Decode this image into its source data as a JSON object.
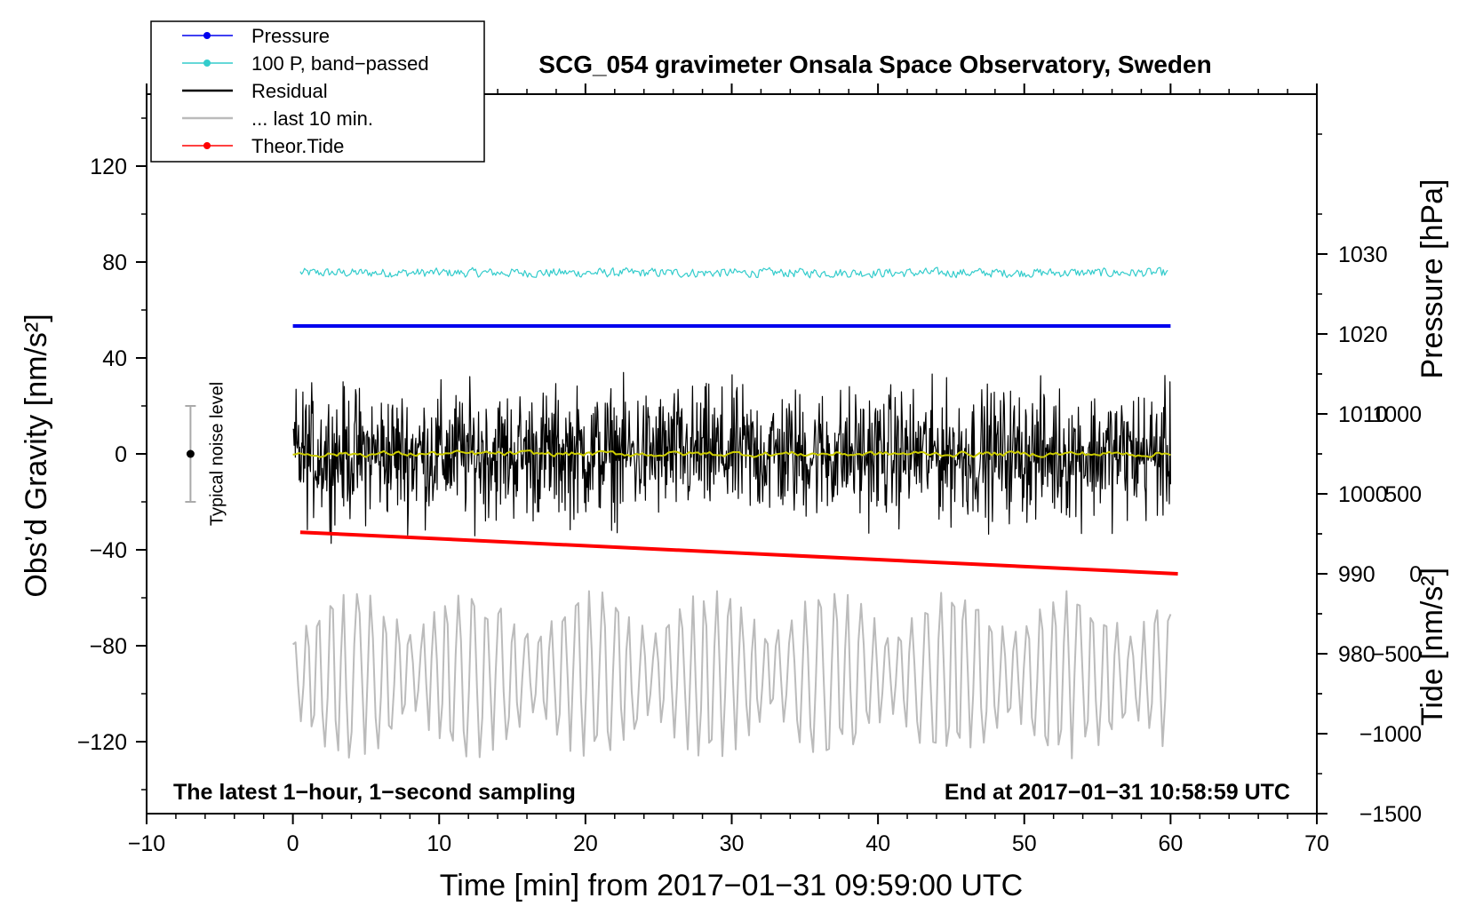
{
  "chart_data": {
    "type": "line",
    "title": "SCG_054 gravimeter Onsala Space Observatory, Sweden",
    "xlabel": "Time [min] from 2017−01−31 09:59:00 UTC",
    "ylabel_left": "Obs’d Gravity [nm/s²]",
    "ylabel_right_top": "Pressure [hPa]",
    "ylabel_right_bottom": "Tide [nm/s²]",
    "xlim": [
      -10,
      70
    ],
    "ylim_left": [
      -150,
      150
    ],
    "ylim_pressure": [
      960,
      1050
    ],
    "ylim_tide": [
      -1500,
      3000
    ],
    "x_ticks": [
      -10,
      0,
      10,
      20,
      30,
      40,
      50,
      60,
      70
    ],
    "x_tick_labels": [
      "−10",
      "0",
      "10",
      "20",
      "30",
      "40",
      "50",
      "60",
      "70"
    ],
    "y_left_ticks": [
      -120,
      -80,
      -40,
      0,
      40,
      80,
      120
    ],
    "y_left_tick_labels": [
      "−120",
      "−80",
      "−40",
      "0",
      "40",
      "80",
      "120"
    ],
    "y_pressure_ticks": [
      980,
      990,
      1000,
      1010,
      1020,
      1030
    ],
    "y_pressure_tick_labels": [
      "980",
      "990",
      "1000",
      "1010",
      "1020",
      "1030"
    ],
    "y_tide_ticks": [
      -1500,
      -1000,
      -500,
      0,
      500,
      1000
    ],
    "y_tide_tick_labels": [
      "−1500",
      "−1000",
      "−500",
      "0",
      "500",
      "1000"
    ],
    "grid": false,
    "legend_position": "top-left",
    "legend": [
      {
        "label": "Pressure",
        "color": "#0000ee",
        "marker": true
      },
      {
        "label": "100 P, band−passed",
        "color": "#33cccc",
        "marker": true
      },
      {
        "label": "Residual",
        "color": "#000000",
        "marker": false
      },
      {
        "label": "... last 10 min.",
        "color": "#bbbbbb",
        "marker": false
      },
      {
        "label": "Theor.Tide",
        "color": "#ff0000",
        "marker": true
      }
    ],
    "series": [
      {
        "name": "Pressure",
        "axis": "pressure",
        "color": "#0000ee",
        "x": [
          0,
          60
        ],
        "values": [
          1021,
          1021
        ]
      },
      {
        "name": "100 P, band-passed",
        "axis": "left",
        "color": "#33cccc",
        "x_range": [
          0.5,
          59.8
        ],
        "center": 75.5,
        "amplitude": 2.5
      },
      {
        "name": "Residual",
        "axis": "left",
        "color": "#000000",
        "x_range": [
          0,
          60
        ],
        "center": 0,
        "amplitude": 35
      },
      {
        "name": "Residual (smoothed)",
        "axis": "left",
        "color": "#cccc00",
        "x_range": [
          0,
          60
        ],
        "center": 0,
        "amplitude": 1.5
      },
      {
        "name": "... last 10 min.",
        "axis": "left",
        "color": "#bbbbbb",
        "x_range": [
          0,
          60
        ],
        "center": -92,
        "amplitude": 35
      },
      {
        "name": "Theor.Tide",
        "axis": "tide",
        "color": "#ff0000",
        "x": [
          0.5,
          60.5
        ],
        "values": [
          260,
          0
        ]
      }
    ],
    "noise_indicator": {
      "label": "Typical noise level",
      "x": -7,
      "center": 0,
      "range": [
        -20,
        20
      ]
    },
    "annotations": {
      "bottom_left": "The latest 1−hour, 1−second sampling",
      "bottom_right": "End at 2017−01−31 10:58:59 UTC"
    }
  }
}
